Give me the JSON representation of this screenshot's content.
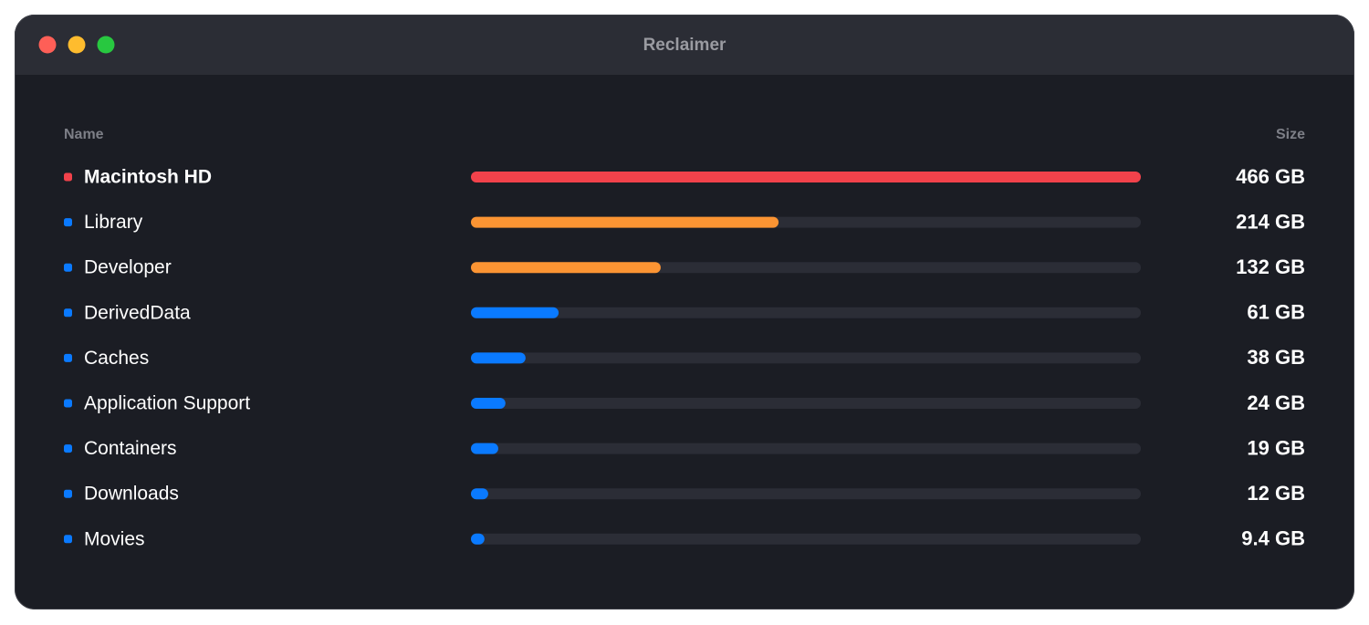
{
  "window": {
    "title": "Reclaimer"
  },
  "table": {
    "headers": {
      "name": "Name",
      "size": "Size"
    },
    "rows": [
      {
        "name": "Macintosh HD",
        "size": {
          "value": 466,
          "label": "466 GB"
        },
        "dot_color": "#f2424b",
        "bar_color": "#f2424b"
      },
      {
        "name": "Library",
        "size": {
          "value": 214,
          "label": "214 GB"
        },
        "dot_color": "#0a7aff",
        "bar_color": "#fb9433"
      },
      {
        "name": "Developer",
        "size": {
          "value": 132,
          "label": "132 GB"
        },
        "dot_color": "#0a7aff",
        "bar_color": "#fb9433"
      },
      {
        "name": "DerivedData",
        "size": {
          "value": 61,
          "label": "61 GB"
        },
        "dot_color": "#0a7aff",
        "bar_color": "#0a7aff"
      },
      {
        "name": "Caches",
        "size": {
          "value": 38,
          "label": "38 GB"
        },
        "dot_color": "#0a7aff",
        "bar_color": "#0a7aff"
      },
      {
        "name": "Application Support",
        "size": {
          "value": 24,
          "label": "24 GB"
        },
        "dot_color": "#0a7aff",
        "bar_color": "#0a7aff"
      },
      {
        "name": "Containers",
        "size": {
          "value": 19,
          "label": "19 GB"
        },
        "dot_color": "#0a7aff",
        "bar_color": "#0a7aff"
      },
      {
        "name": "Downloads",
        "size": {
          "value": 12,
          "label": "12 GB"
        },
        "dot_color": "#0a7aff",
        "bar_color": "#0a7aff"
      },
      {
        "name": "Movies",
        "size": {
          "value": 9.4,
          "label": "9.4 GB"
        },
        "dot_color": "#0a7aff",
        "bar_color": "#0a7aff"
      }
    ]
  }
}
